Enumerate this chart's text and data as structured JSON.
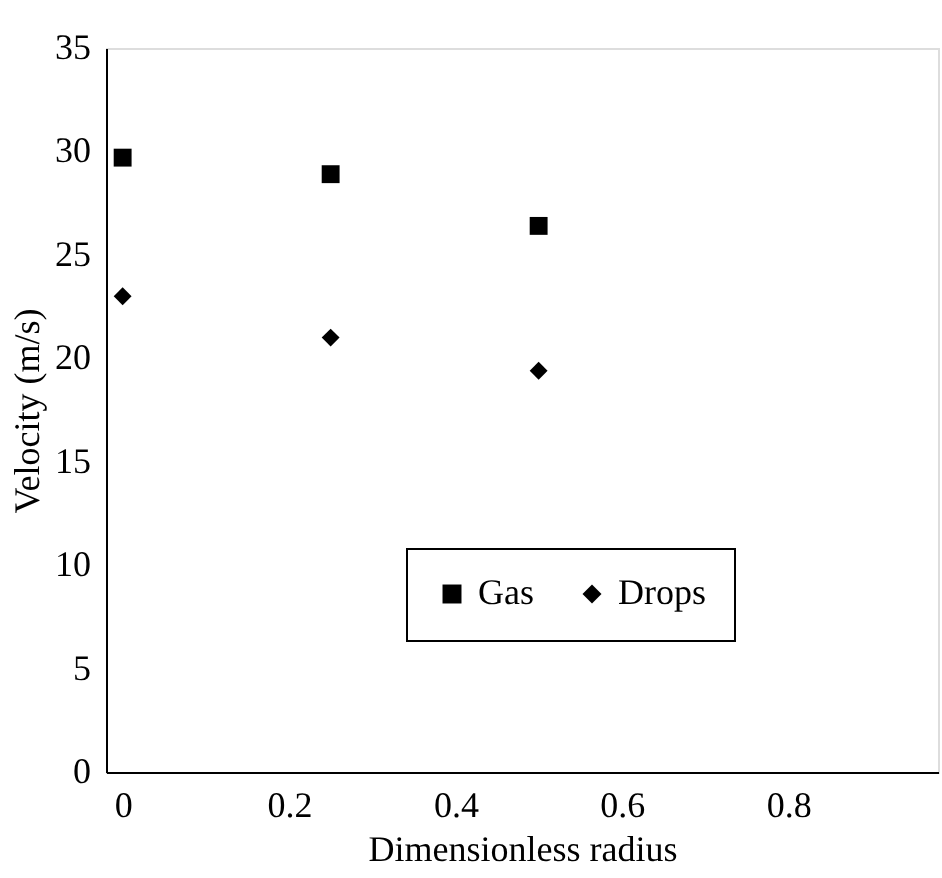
{
  "chart_data": {
    "type": "scatter",
    "xlabel": "Dimensionless radius",
    "ylabel": "Velocity (m/s)",
    "x": [
      0,
      0.25,
      0.5
    ],
    "series": [
      {
        "name": "Gas",
        "color": "#000000",
        "marker": "square",
        "values": [
          29.7,
          28.9,
          26.4
        ]
      },
      {
        "name": "Drops",
        "color": "#000000",
        "marker": "diamond",
        "values": [
          23.0,
          21.0,
          19.4
        ]
      }
    ],
    "xlim": [
      -0.02,
      0.98
    ],
    "xticks": [
      0,
      0.2,
      0.4,
      0.6,
      0.8
    ],
    "ylim": [
      0,
      35
    ],
    "yticks": [
      0,
      5,
      10,
      15,
      20,
      25,
      30,
      35
    ],
    "grid": false,
    "legend": "bottom"
  }
}
